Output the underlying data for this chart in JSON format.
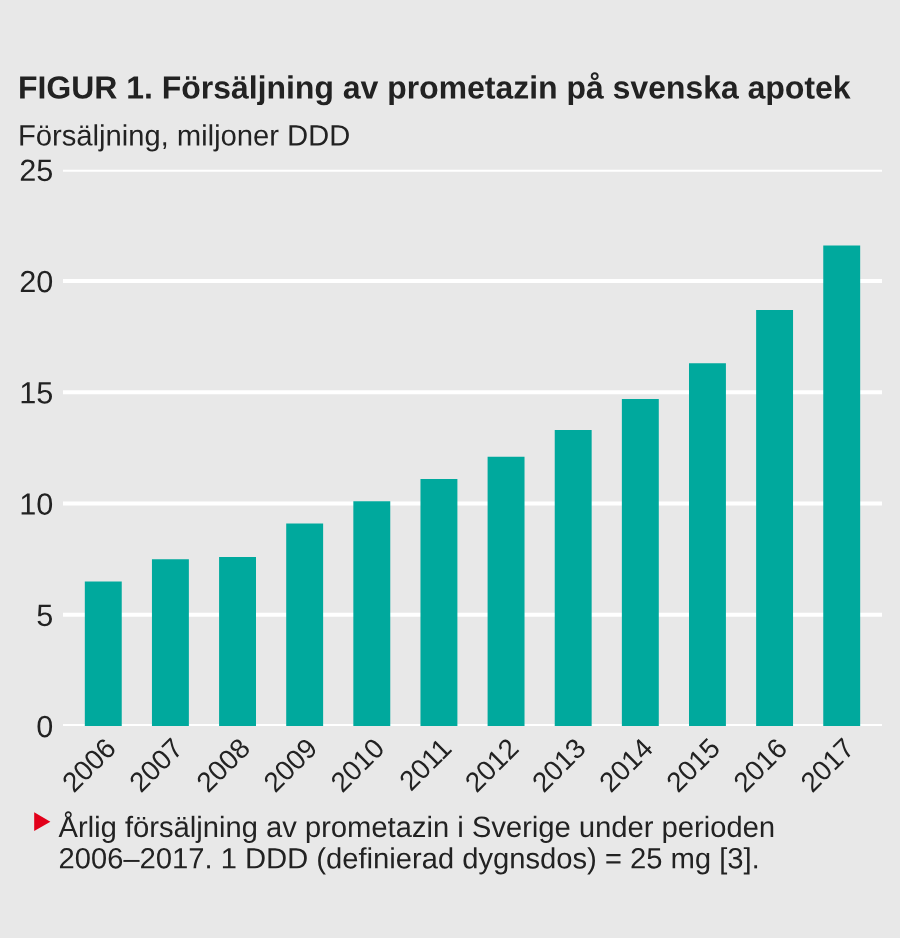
{
  "chart_data": {
    "type": "bar",
    "title": "FIGUR 1. Försäljning av prometazin på svenska apotek",
    "ylabel": "Försäljning, miljoner DDD",
    "categories": [
      "2006",
      "2007",
      "2008",
      "2009",
      "2010",
      "2011",
      "2012",
      "2013",
      "2014",
      "2015",
      "2016",
      "2017"
    ],
    "values": [
      6.5,
      7.5,
      7.6,
      9.1,
      10.1,
      11.1,
      12.1,
      13.3,
      14.7,
      16.3,
      18.7,
      21.6
    ],
    "color": "#00a99d",
    "ylim": [
      0,
      25
    ],
    "yticks": [
      0,
      5,
      10,
      15,
      20,
      25
    ],
    "grid": "y",
    "annotations": [
      "Årlig försäljning av prometazin i Sverige under perioden 2006–2017. 1 DDD (definierad dygnsdos) = 25 mg [3]."
    ]
  }
}
